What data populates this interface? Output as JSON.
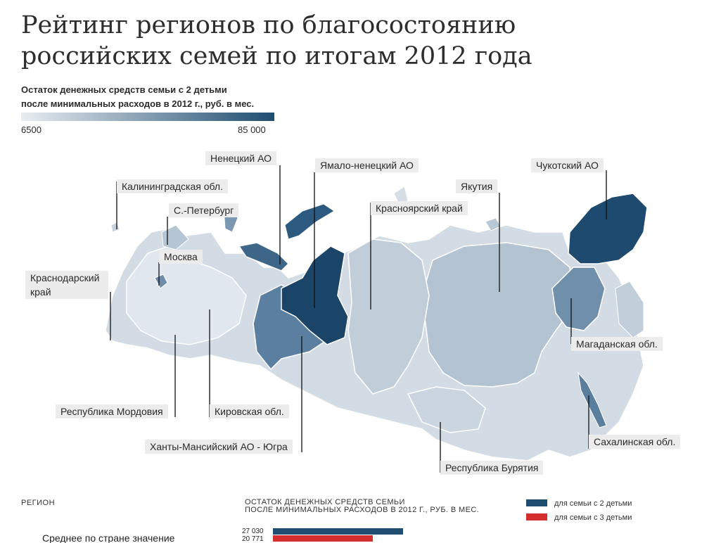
{
  "title": {
    "line1": "Рейтинг регионов по благосостоянию",
    "line2": "российских семей по итогам 2012 года"
  },
  "scale_legend": {
    "caption_line1": "Остаток денежных средств семьи с 2 детьми",
    "caption_line2": "после минимальных расходов в 2012 г., руб. в мес.",
    "min_label": "6500",
    "max_label": "85 000",
    "color_min": "#e9edf2",
    "color_max": "#1e4d70"
  },
  "map_labels": {
    "nenets": "Ненецкий АО",
    "yamal": "Ямало-ненецкий АО",
    "chukotka": "Чукотский АО",
    "kaliningrad": "Калининградская обл.",
    "yakutia": "Якутия",
    "spb": "С.-Петербург",
    "krasnoyarsk": "Красноярский край",
    "moscow": "Москва",
    "krasnodar_line1": "Краснодарский",
    "krasnodar_line2": "край",
    "magadan": "Магаданская обл.",
    "mordovia": "Республика Мордовия",
    "kirov": "Кировская обл.",
    "khanty": "Ханты-Мансийский АО - Югра",
    "sakhalin": "Сахалинская обл.",
    "buryatia": "Республика Бурятия"
  },
  "bottom_header": {
    "region_col": "РЕГИОН",
    "amount_line1": "ОСТАТОК ДЕНЕЖНЫХ СРЕДСТВ СЕМЬИ",
    "amount_line2": "ПОСЛЕ МИНИМАЛЬНЫХ РАСХОДОВ В 2012 Г., РУБ. В МЕС.",
    "legend_two_children": "для семьи с 2 детьми",
    "legend_three_children": "для семьи с 3 детьми",
    "color_two_children": "#1e4d70",
    "color_three_children": "#d42f2f"
  },
  "chart_data": {
    "type": "bar",
    "categories": [
      "Среднее по стране значение"
    ],
    "series": [
      {
        "name": "для семьи с 2 детьми",
        "values": [
          27030
        ],
        "labels": [
          "27 030"
        ]
      },
      {
        "name": "для семьи с 3 детьми",
        "values": [
          20771
        ],
        "labels": [
          "20 771"
        ]
      }
    ]
  }
}
